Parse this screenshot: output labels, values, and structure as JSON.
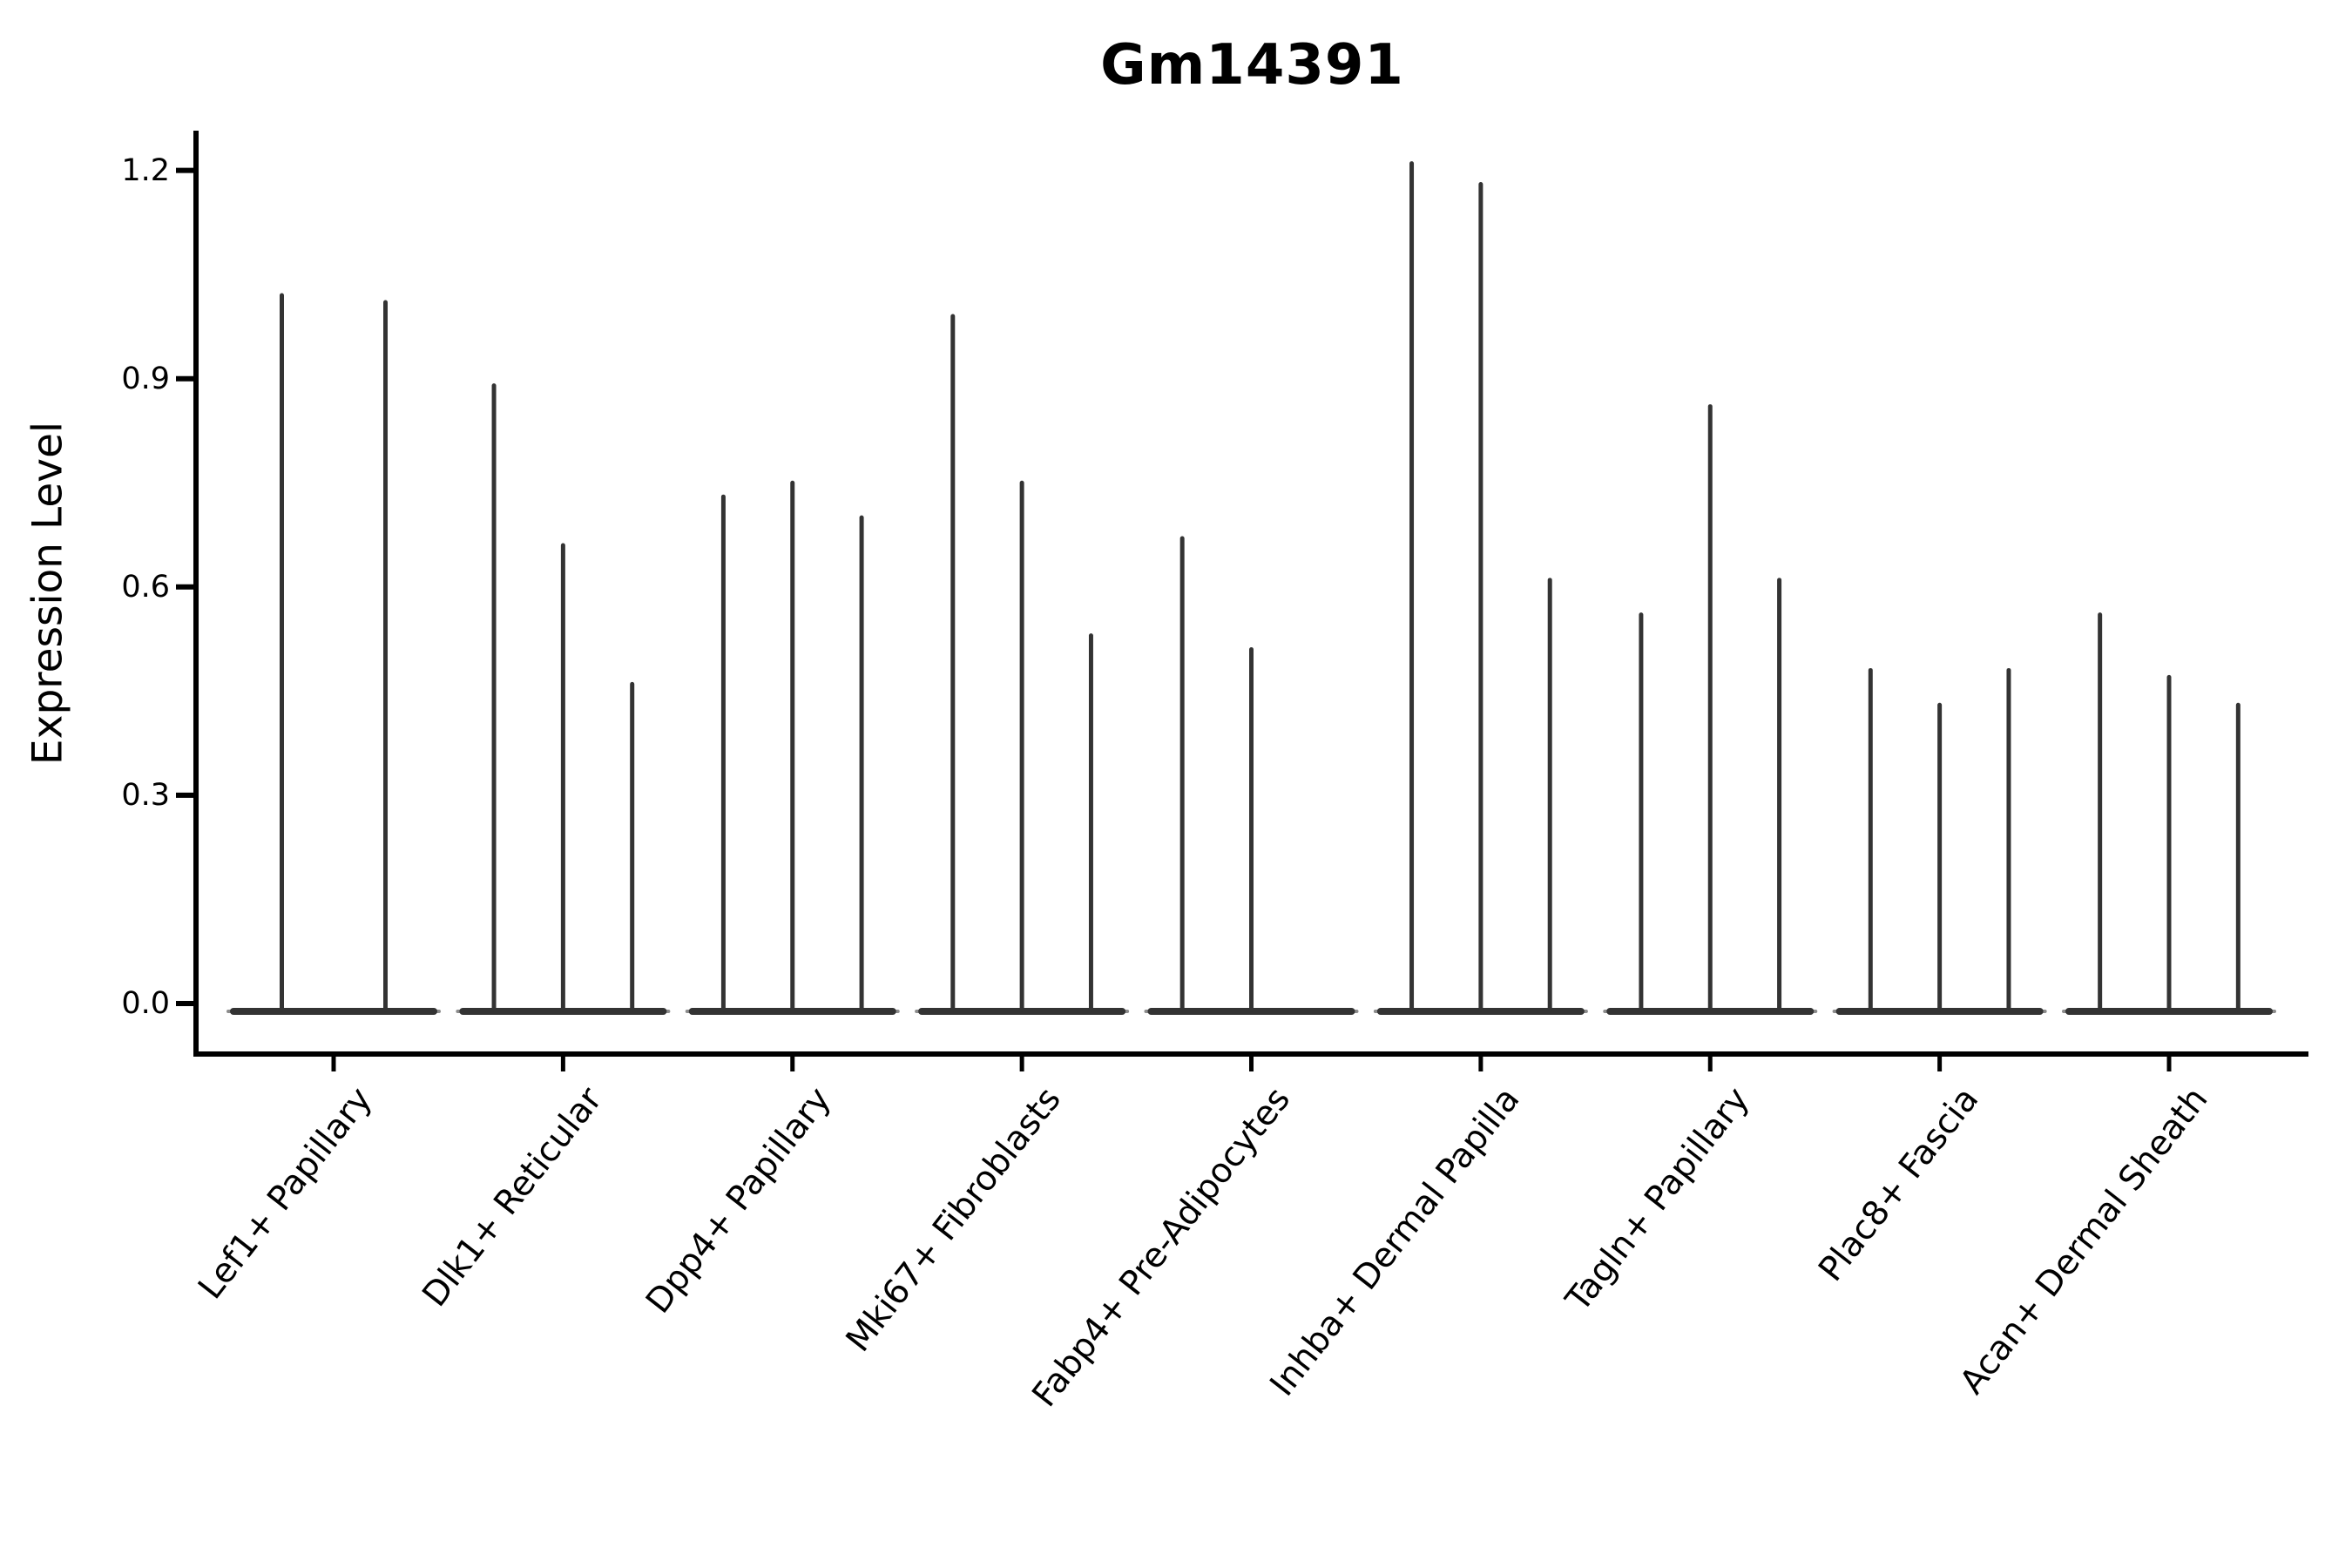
{
  "chart_data": {
    "type": "violin",
    "title": "Gm14391",
    "xlabel": "",
    "ylabel": "Expression Level",
    "yticks": [
      "0.0",
      "0.3",
      "0.6",
      "0.9",
      "1.2"
    ],
    "ylim": [
      -0.07,
      1.26
    ],
    "grid": false,
    "legend": "none",
    "categories": [
      "Lef1+ Papillary",
      "Dlk1+ Reticular",
      "Dpp4+ Papillary",
      "Mki67+ Fibroblasts",
      "Fabp4+ Pre-Adipocytes",
      "Inhba+ Dermal Papilla",
      "Tagln+ Papillary",
      "Plac8+ Fascia",
      "Acan+ Dermal Sheath"
    ],
    "groups": [
      {
        "category": "Lef1+ Papillary",
        "violin_peaks": [
          1.02,
          1.01
        ]
      },
      {
        "category": "Dlk1+ Reticular",
        "violin_peaks": [
          0.89,
          0.66,
          0.46
        ]
      },
      {
        "category": "Dpp4+ Papillary",
        "violin_peaks": [
          0.73,
          0.75,
          0.7
        ]
      },
      {
        "category": "Mki67+ Fibroblasts",
        "violin_peaks": [
          0.99,
          0.75,
          0.53
        ]
      },
      {
        "category": "Fabp4+ Pre-Adipocytes",
        "violin_peaks": [
          0.67,
          0.51,
          0
        ]
      },
      {
        "category": "Inhba+ Dermal Papilla",
        "violin_peaks": [
          1.21,
          1.18,
          0.61
        ]
      },
      {
        "category": "Tagln+ Papillary",
        "violin_peaks": [
          0.56,
          0.86,
          0.61
        ]
      },
      {
        "category": "Plac8+ Fascia",
        "violin_peaks": [
          0.48,
          0.43,
          0.48
        ]
      },
      {
        "category": "Acan+ Dermal Sheath",
        "violin_peaks": [
          0.56,
          0.47,
          0.43
        ]
      }
    ],
    "colors": {
      "violin": "#333333",
      "violin_tip": "#8c8c8c",
      "axis": "#000000",
      "background": "#ffffff"
    }
  }
}
